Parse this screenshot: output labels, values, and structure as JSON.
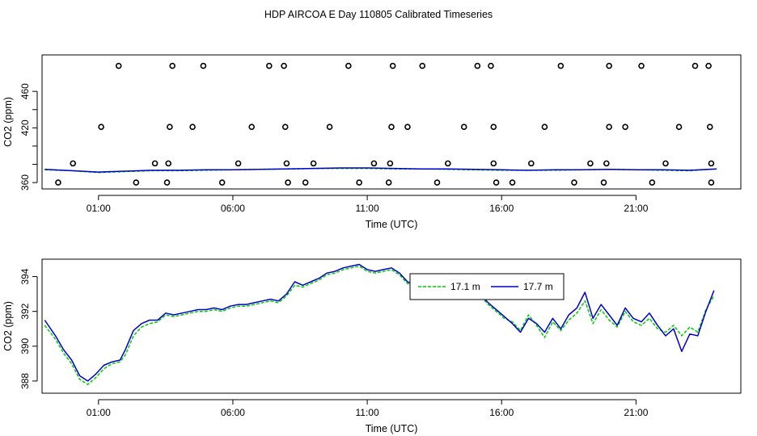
{
  "title": "HDP AIRCOA E  Day 110805  Calibrated Timeseries",
  "chart_data": [
    {
      "type": "scatter",
      "xlabel": "Time (UTC)",
      "ylabel": "CO2 (ppm)",
      "x_ticks": [
        1,
        6,
        11,
        16,
        21
      ],
      "x_tick_labels": [
        "01:00",
        "06:00",
        "11:00",
        "16:00",
        "21:00"
      ],
      "y_ticks": [
        360,
        380,
        400,
        420,
        440,
        460
      ],
      "y_tick_labels": [
        "360",
        "",
        "",
        "420",
        "",
        "460"
      ],
      "xlim": [
        -1.1,
        24.9
      ],
      "ylim": [
        353,
        500
      ],
      "grid": false,
      "legend": "none",
      "series": [
        {
          "type": "points",
          "marker": "open-circle",
          "color": "#000000",
          "points": [
            [
              -0.5,
              360
            ],
            [
              0.05,
              381
            ],
            [
              1.1,
              421
            ],
            [
              1.75,
              488
            ],
            [
              2.4,
              360
            ],
            [
              3.1,
              381
            ],
            [
              3.55,
              360
            ],
            [
              3.6,
              381
            ],
            [
              3.65,
              421
            ],
            [
              3.75,
              488
            ],
            [
              4.5,
              421
            ],
            [
              4.9,
              488
            ],
            [
              5.6,
              360
            ],
            [
              6.2,
              381
            ],
            [
              6.7,
              421
            ],
            [
              7.35,
              488
            ],
            [
              7.9,
              488
            ],
            [
              7.95,
              421
            ],
            [
              8.0,
              381
            ],
            [
              8.05,
              360
            ],
            [
              8.7,
              360
            ],
            [
              9.0,
              381
            ],
            [
              9.6,
              421
            ],
            [
              10.3,
              488
            ],
            [
              10.7,
              360
            ],
            [
              11.25,
              381
            ],
            [
              11.85,
              381
            ],
            [
              11.9,
              421
            ],
            [
              11.95,
              488
            ],
            [
              11.8,
              360
            ],
            [
              12.5,
              421
            ],
            [
              13.05,
              488
            ],
            [
              13.6,
              360
            ],
            [
              14.0,
              381
            ],
            [
              14.6,
              421
            ],
            [
              15.1,
              488
            ],
            [
              15.6,
              488
            ],
            [
              15.7,
              381
            ],
            [
              15.8,
              360
            ],
            [
              15.7,
              421
            ],
            [
              16.4,
              360
            ],
            [
              17.1,
              381
            ],
            [
              17.6,
              421
            ],
            [
              18.2,
              488
            ],
            [
              18.7,
              360
            ],
            [
              19.3,
              381
            ],
            [
              19.8,
              360
            ],
            [
              19.9,
              381
            ],
            [
              20.0,
              421
            ],
            [
              20.0,
              488
            ],
            [
              20.6,
              421
            ],
            [
              21.2,
              488
            ],
            [
              21.6,
              360
            ],
            [
              22.1,
              381
            ],
            [
              22.6,
              421
            ],
            [
              23.2,
              488
            ],
            [
              23.7,
              488
            ],
            [
              23.75,
              421
            ],
            [
              23.8,
              381
            ],
            [
              23.8,
              360
            ]
          ]
        },
        {
          "name": "17.1 m",
          "type": "line",
          "color": "#00cc00",
          "dash": true,
          "x": [
            -1,
            0,
            1,
            2,
            3,
            4,
            5,
            6,
            7,
            8,
            9,
            10,
            11,
            12,
            13,
            14,
            15,
            16,
            17,
            18,
            19,
            20,
            21,
            22,
            23,
            24
          ],
          "y": [
            374,
            373,
            371,
            372,
            373,
            373,
            373.5,
            374,
            374.5,
            375,
            375.5,
            375.5,
            375.5,
            375,
            375,
            374.5,
            374,
            373.5,
            373.5,
            373.5,
            374,
            374.5,
            374,
            373.5,
            373,
            375
          ]
        },
        {
          "name": "17.7 m",
          "type": "line",
          "color": "#0000cc",
          "x": [
            -1,
            0,
            1,
            2,
            3,
            4,
            5,
            6,
            7,
            8,
            9,
            10,
            11,
            12,
            13,
            14,
            15,
            16,
            17,
            18,
            19,
            20,
            21,
            22,
            23,
            24
          ],
          "y": [
            374.5,
            373,
            371.5,
            372.5,
            373.5,
            373.5,
            374,
            374,
            374.5,
            375,
            375.5,
            376,
            376,
            375.5,
            375,
            375,
            374.5,
            374,
            373.5,
            374,
            374,
            374.5,
            374,
            374,
            373.5,
            375
          ]
        }
      ]
    },
    {
      "type": "line",
      "xlabel": "Time (UTC)",
      "ylabel": "CO2 (ppm)",
      "x_ticks": [
        1,
        6,
        11,
        16,
        21
      ],
      "x_tick_labels": [
        "01:00",
        "06:00",
        "11:00",
        "16:00",
        "21:00"
      ],
      "y_ticks": [
        388,
        390,
        392,
        394
      ],
      "y_tick_labels": [
        "388",
        "390",
        "392",
        "394"
      ],
      "xlim": [
        -1.1,
        24.9
      ],
      "ylim": [
        387.3,
        395.0
      ],
      "grid": false,
      "legend": "top-center",
      "series": [
        {
          "name": "17.1 m",
          "color": "#00cc00",
          "dash": true,
          "x": [
            -1,
            -0.6,
            -0.3,
            0,
            0.3,
            0.6,
            0.9,
            1.2,
            1.5,
            1.8,
            2.0,
            2.3,
            2.6,
            2.9,
            3.2,
            3.5,
            3.8,
            4.1,
            4.4,
            4.7,
            5.0,
            5.3,
            5.6,
            5.9,
            6.2,
            6.5,
            6.8,
            7.1,
            7.4,
            7.7,
            8.0,
            8.3,
            8.6,
            8.9,
            9.2,
            9.5,
            9.8,
            10.1,
            10.4,
            10.7,
            11.0,
            11.3,
            11.6,
            11.9,
            12.2,
            12.5,
            12.8,
            13.1,
            13.4,
            13.7,
            14.0,
            14.3,
            14.6,
            14.9,
            15.2,
            15.5,
            15.8,
            16.1,
            16.4,
            16.7,
            17.0,
            17.3,
            17.6,
            17.9,
            18.2,
            18.5,
            18.8,
            19.1,
            19.4,
            19.7,
            20.0,
            20.3,
            20.6,
            20.9,
            21.2,
            21.5,
            21.8,
            22.1,
            22.4,
            22.7,
            23.0,
            23.3,
            23.6,
            23.9
          ],
          "y": [
            391.2,
            390.4,
            389.6,
            389.0,
            388.1,
            387.8,
            388.2,
            388.7,
            389.0,
            389.1,
            389.5,
            390.6,
            391.1,
            391.3,
            391.4,
            391.8,
            391.7,
            391.8,
            391.9,
            392.0,
            392.0,
            392.1,
            392.0,
            392.2,
            392.3,
            392.3,
            392.4,
            392.5,
            392.6,
            392.5,
            392.9,
            393.5,
            393.4,
            393.6,
            393.8,
            394.1,
            394.2,
            394.4,
            394.5,
            394.6,
            394.3,
            394.2,
            394.3,
            394.4,
            394.1,
            393.6,
            393.4,
            393.5,
            393.4,
            393.6,
            393.5,
            393.3,
            393.1,
            393.3,
            392.9,
            392.4,
            392.0,
            391.6,
            391.4,
            390.9,
            391.8,
            391.2,
            390.5,
            391.4,
            390.9,
            391.5,
            391.9,
            392.6,
            391.3,
            392.1,
            391.5,
            391.1,
            392.0,
            391.4,
            391.2,
            391.6,
            391.0,
            390.8,
            391.2,
            390.6,
            391.1,
            390.8,
            392.1,
            392.9
          ]
        },
        {
          "name": "17.7 m",
          "color": "#0000cc",
          "x": [
            -1,
            -0.6,
            -0.3,
            0,
            0.3,
            0.6,
            0.9,
            1.2,
            1.5,
            1.8,
            2.0,
            2.3,
            2.6,
            2.9,
            3.2,
            3.5,
            3.8,
            4.1,
            4.4,
            4.7,
            5.0,
            5.3,
            5.6,
            5.9,
            6.2,
            6.5,
            6.8,
            7.1,
            7.4,
            7.7,
            8.0,
            8.3,
            8.6,
            8.9,
            9.2,
            9.5,
            9.8,
            10.1,
            10.4,
            10.7,
            11.0,
            11.3,
            11.6,
            11.9,
            12.2,
            12.5,
            12.8,
            13.1,
            13.4,
            13.7,
            14.0,
            14.3,
            14.6,
            14.9,
            15.2,
            15.5,
            15.8,
            16.1,
            16.4,
            16.7,
            17.0,
            17.3,
            17.6,
            17.9,
            18.2,
            18.5,
            18.8,
            19.1,
            19.4,
            19.7,
            20.0,
            20.3,
            20.6,
            20.9,
            21.2,
            21.5,
            21.8,
            22.1,
            22.4,
            22.7,
            23.0,
            23.3,
            23.6,
            23.9
          ],
          "y": [
            391.5,
            390.6,
            389.8,
            389.2,
            388.3,
            388.0,
            388.4,
            388.9,
            389.1,
            389.2,
            389.8,
            390.9,
            391.3,
            391.5,
            391.5,
            391.9,
            391.8,
            391.9,
            392.0,
            392.1,
            392.1,
            392.2,
            392.1,
            392.3,
            392.4,
            392.4,
            392.5,
            392.6,
            392.7,
            392.6,
            393.0,
            393.7,
            393.5,
            393.7,
            393.9,
            394.2,
            394.3,
            394.5,
            394.6,
            394.7,
            394.4,
            394.3,
            394.4,
            394.5,
            394.2,
            393.7,
            393.5,
            393.6,
            393.4,
            393.8,
            393.6,
            393.4,
            393.2,
            393.4,
            393.0,
            392.5,
            392.1,
            391.7,
            391.3,
            390.8,
            391.6,
            391.3,
            390.8,
            391.6,
            391.0,
            391.8,
            392.2,
            393.1,
            391.6,
            392.4,
            391.8,
            391.2,
            392.2,
            391.6,
            391.4,
            391.9,
            391.2,
            390.6,
            391.0,
            389.7,
            390.7,
            390.6,
            392.0,
            393.2
          ]
        }
      ]
    }
  ]
}
